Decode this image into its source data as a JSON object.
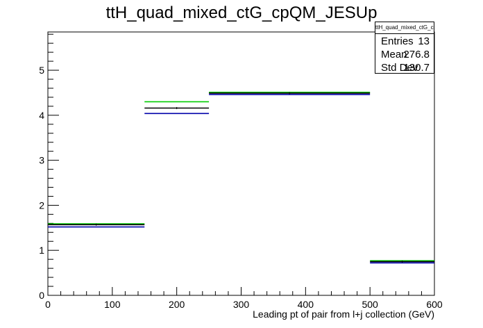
{
  "chart_data": {
    "type": "histogram-step",
    "title": "ttH_quad_mixed_ctG_cpQM_JESUp",
    "xlabel": "Leading pt of pair from l+j collection (GeV)",
    "ylabel": "",
    "xlim": [
      0,
      600
    ],
    "ylim": [
      0,
      5.85
    ],
    "x_ticks": [
      0,
      100,
      200,
      300,
      400,
      500,
      600
    ],
    "y_ticks": [
      0,
      1,
      2,
      3,
      4,
      5
    ],
    "bin_edges": [
      0,
      150,
      250,
      500,
      600
    ],
    "series": [
      {
        "color": "#00cc00",
        "values": [
          1.59,
          4.3,
          4.51,
          0.77
        ]
      },
      {
        "color": "#000000",
        "values": [
          1.57,
          4.16,
          4.49,
          0.75
        ]
      },
      {
        "color": "#0000aa",
        "values": [
          1.52,
          4.04,
          4.46,
          0.72
        ]
      }
    ],
    "stats": {
      "name": "ttH_quad_mixed_ctG_cpQM_JESUp",
      "entries_label": "Entries",
      "entries": "13",
      "mean_label": "Mean",
      "mean": "276.8",
      "stddev_label": "Std Dev",
      "stddev": "130.7"
    }
  }
}
